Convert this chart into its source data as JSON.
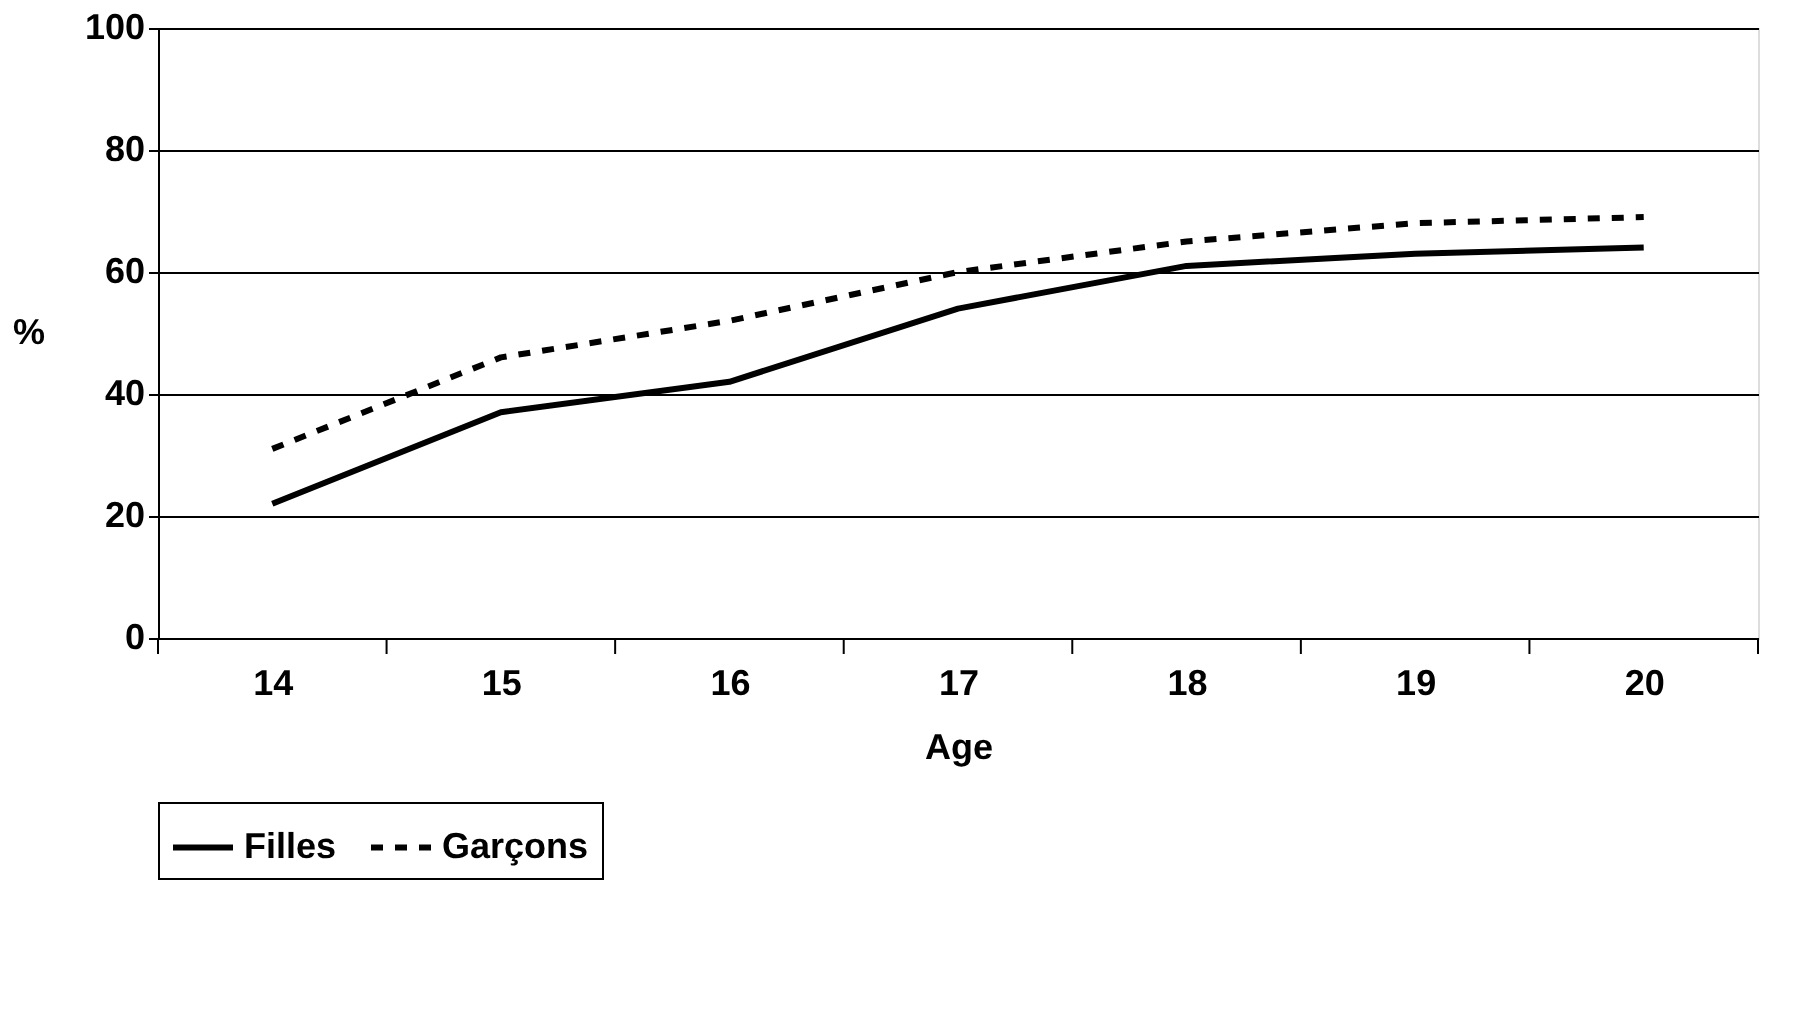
{
  "chart_data": {
    "type": "line",
    "categories": [
      "14",
      "15",
      "16",
      "17",
      "18",
      "19",
      "20"
    ],
    "xlabel": "Age",
    "ylabel": "%",
    "ylim": [
      0,
      100
    ],
    "yticks": [
      0,
      20,
      40,
      60,
      80,
      100
    ],
    "grid": "y",
    "legend": "bottom",
    "series": [
      {
        "name": "Filles",
        "color": "#000000",
        "line_style": "solid",
        "values": [
          22,
          37,
          42,
          54,
          61,
          63,
          64
        ]
      },
      {
        "name": "Garçons",
        "color": "#000000",
        "line_style": "dashed",
        "values": [
          31,
          46,
          52,
          60,
          65,
          68,
          69
        ]
      }
    ]
  }
}
